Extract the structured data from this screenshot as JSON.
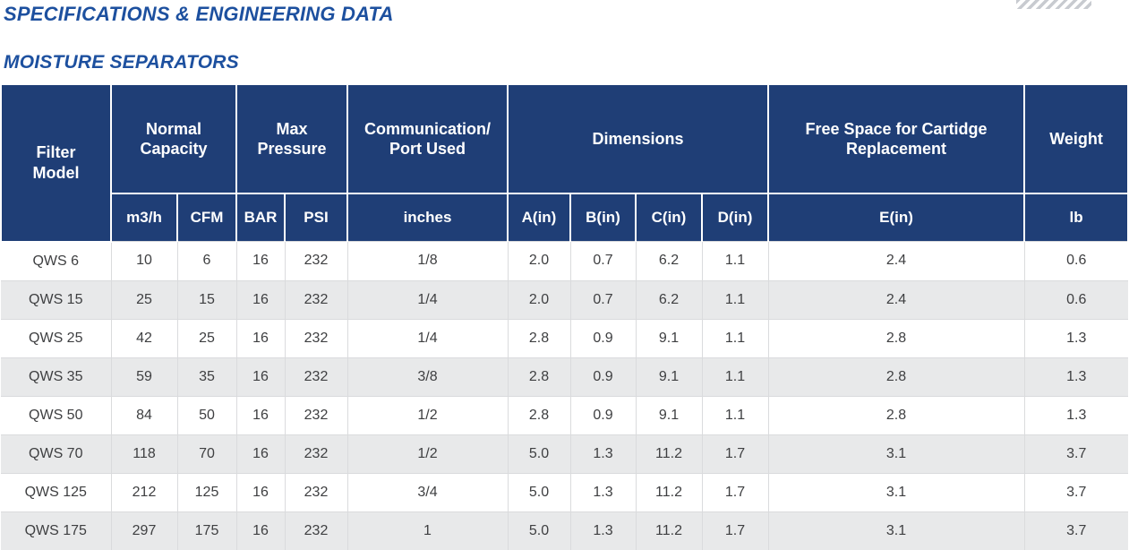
{
  "page": {
    "title1": "SPECIFICATIONS & ENGINEERING DATA",
    "title2": "MOISTURE SEPARATORS"
  },
  "colors": {
    "title_blue": "#1d509f",
    "header_navy": "#1f3e76",
    "alt_row_gray": "#e8e9ea",
    "cell_border_gray": "#dadbdd",
    "stripe_gray": "#c8cbd0",
    "data_text": "#3e3f41"
  },
  "decoration": {
    "top_right": "diagonal-stripes"
  },
  "table": {
    "header_groups": {
      "filter_model": "Filter Model",
      "normal_capacity": "Normal Capacity",
      "max_pressure": "Max Pressure",
      "communication_port": "Communication/ Port Used",
      "dimensions": "Dimensions",
      "free_space": "Free Space for Cartidge Replacement",
      "weight": "Weight"
    },
    "subheaders": [
      "m3/h",
      "CFM",
      "BAR",
      "PSI",
      "inches",
      "A(in)",
      "B(in)",
      "C(in)",
      "D(in)",
      "E(in)",
      "lb"
    ],
    "column_keys": [
      "model",
      "m3h",
      "cfm",
      "bar",
      "psi",
      "inches",
      "a",
      "b",
      "c",
      "d",
      "e",
      "lb"
    ],
    "rows": [
      {
        "model": "QWS 6",
        "m3h": "10",
        "cfm": "6",
        "bar": "16",
        "psi": "232",
        "inches": "1/8",
        "a": "2.0",
        "b": "0.7",
        "c": "6.2",
        "d": "1.1",
        "e": "2.4",
        "lb": "0.6"
      },
      {
        "model": "QWS 15",
        "m3h": "25",
        "cfm": "15",
        "bar": "16",
        "psi": "232",
        "inches": "1/4",
        "a": "2.0",
        "b": "0.7",
        "c": "6.2",
        "d": "1.1",
        "e": "2.4",
        "lb": "0.6"
      },
      {
        "model": "QWS 25",
        "m3h": "42",
        "cfm": "25",
        "bar": "16",
        "psi": "232",
        "inches": "1/4",
        "a": "2.8",
        "b": "0.9",
        "c": "9.1",
        "d": "1.1",
        "e": "2.8",
        "lb": "1.3"
      },
      {
        "model": "QWS 35",
        "m3h": "59",
        "cfm": "35",
        "bar": "16",
        "psi": "232",
        "inches": "3/8",
        "a": "2.8",
        "b": "0.9",
        "c": "9.1",
        "d": "1.1",
        "e": "2.8",
        "lb": "1.3"
      },
      {
        "model": "QWS 50",
        "m3h": "84",
        "cfm": "50",
        "bar": "16",
        "psi": "232",
        "inches": "1/2",
        "a": "2.8",
        "b": "0.9",
        "c": "9.1",
        "d": "1.1",
        "e": "2.8",
        "lb": "1.3"
      },
      {
        "model": "QWS 70",
        "m3h": "118",
        "cfm": "70",
        "bar": "16",
        "psi": "232",
        "inches": "1/2",
        "a": "5.0",
        "b": "1.3",
        "c": "11.2",
        "d": "1.7",
        "e": "3.1",
        "lb": "3.7"
      },
      {
        "model": "QWS 125",
        "m3h": "212",
        "cfm": "125",
        "bar": "16",
        "psi": "232",
        "inches": "3/4",
        "a": "5.0",
        "b": "1.3",
        "c": "11.2",
        "d": "1.7",
        "e": "3.1",
        "lb": "3.7"
      },
      {
        "model": "QWS 175",
        "m3h": "297",
        "cfm": "175",
        "bar": "16",
        "psi": "232",
        "inches": "1",
        "a": "5.0",
        "b": "1.3",
        "c": "11.2",
        "d": "1.7",
        "e": "3.1",
        "lb": "3.7"
      }
    ]
  }
}
